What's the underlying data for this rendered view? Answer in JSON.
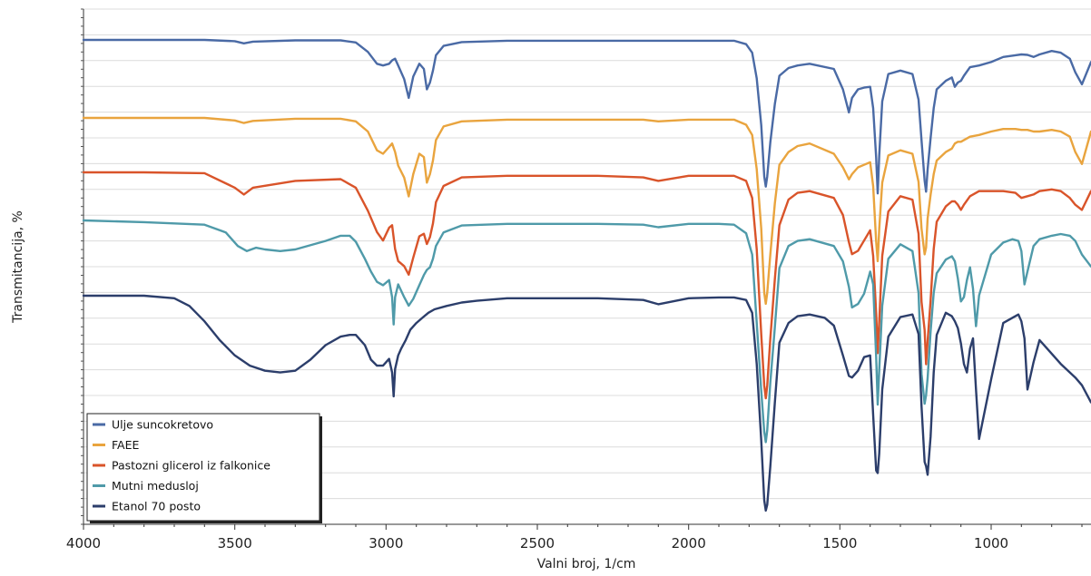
{
  "chart_data": {
    "type": "line",
    "title": "",
    "xlabel": "Valni broj, 1/cm",
    "ylabel": "Transmitancija, %",
    "xlim": [
      4000,
      670
    ],
    "x_reversed": true,
    "x_ticks": [
      4000,
      3500,
      3000,
      2500,
      2000,
      1500,
      1000
    ],
    "grid": "horizontal",
    "legend_position": "bottom-left",
    "series": [
      {
        "name": "Ulje suncokretovo",
        "color": "#4a6aa5",
        "x": [
          4000,
          3800,
          3600,
          3500,
          3470,
          3440,
          3300,
          3150,
          3100,
          3060,
          3030,
          3010,
          2990,
          2980,
          2970,
          2960,
          2940,
          2925,
          2910,
          2890,
          2875,
          2865,
          2855,
          2845,
          2835,
          2810,
          2750,
          2600,
          2300,
          2100,
          2000,
          1900,
          1850,
          1810,
          1790,
          1775,
          1760,
          1750,
          1745,
          1740,
          1730,
          1715,
          1700,
          1670,
          1640,
          1600,
          1520,
          1490,
          1470,
          1460,
          1440,
          1420,
          1400,
          1390,
          1380,
          1375,
          1370,
          1360,
          1340,
          1300,
          1260,
          1240,
          1230,
          1220,
          1215,
          1210,
          1200,
          1190,
          1180,
          1150,
          1130,
          1120,
          1110,
          1100,
          1090,
          1070,
          1040,
          1000,
          960,
          920,
          900,
          880,
          860,
          840,
          800,
          770,
          740,
          722,
          700,
          670
        ],
        "y": [
          0.0,
          0.0,
          0.0,
          -1.5,
          -4.0,
          -2.0,
          -0.5,
          -0.5,
          -3.0,
          -14.0,
          -28.0,
          -30.0,
          -28.0,
          -24.0,
          -22.0,
          -30.0,
          -46.0,
          -68.0,
          -43.0,
          -28.0,
          -34.0,
          -58.0,
          -50.0,
          -36.0,
          -18.0,
          -7.0,
          -2.5,
          -1.0,
          -1.0,
          -1.0,
          -1.0,
          -1.0,
          -1.0,
          -5.0,
          -15.0,
          -45.0,
          -100.0,
          -160.0,
          -172.0,
          -160.0,
          -120.0,
          -75.0,
          -42.0,
          -33.0,
          -30.0,
          -28.0,
          -34.0,
          -58.0,
          -85.0,
          -68.0,
          -58.0,
          -56.0,
          -55.0,
          -80.0,
          -138.0,
          -180.0,
          -135.0,
          -72.0,
          -40.0,
          -36.0,
          -40.0,
          -70.0,
          -118.0,
          -165.0,
          -178.0,
          -152.0,
          -115.0,
          -80.0,
          -58.0,
          -48.0,
          -44.0,
          -55.0,
          -50.0,
          -48.0,
          -42.0,
          -32.0,
          -30.0,
          -26.0,
          -20.0,
          -18.0,
          -17.0,
          -17.5,
          -20.0,
          -17.0,
          -13.0,
          -15.0,
          -22.0,
          -38.0,
          -52.0,
          -26.0
        ]
      },
      {
        "name": "FAEE",
        "color": "#e9a43e",
        "x": [
          4000,
          3800,
          3600,
          3500,
          3470,
          3440,
          3300,
          3150,
          3100,
          3060,
          3030,
          3010,
          2990,
          2980,
          2970,
          2960,
          2940,
          2925,
          2910,
          2890,
          2875,
          2865,
          2855,
          2845,
          2835,
          2810,
          2750,
          2600,
          2300,
          2150,
          2100,
          2000,
          1900,
          1850,
          1810,
          1790,
          1775,
          1760,
          1750,
          1745,
          1740,
          1730,
          1715,
          1700,
          1670,
          1640,
          1600,
          1520,
          1490,
          1470,
          1460,
          1440,
          1420,
          1400,
          1390,
          1380,
          1375,
          1370,
          1360,
          1340,
          1300,
          1260,
          1240,
          1230,
          1220,
          1215,
          1210,
          1200,
          1190,
          1180,
          1150,
          1130,
          1120,
          1110,
          1100,
          1090,
          1070,
          1040,
          1000,
          960,
          920,
          900,
          880,
          860,
          840,
          800,
          770,
          740,
          722,
          700,
          670
        ],
        "y": [
          0.0,
          0.0,
          0.0,
          -3.0,
          -6.0,
          -3.5,
          -1.0,
          -1.0,
          -4.0,
          -16.0,
          -38.0,
          -42.0,
          -34.0,
          -30.0,
          -40.0,
          -56.0,
          -70.0,
          -92.0,
          -66.0,
          -42.0,
          -46.0,
          -76.0,
          -66.0,
          -50.0,
          -26.0,
          -10.0,
          -4.0,
          -2.0,
          -2.0,
          -2.0,
          -4.0,
          -2.0,
          -2.0,
          -2.0,
          -8.0,
          -20.0,
          -60.0,
          -130.0,
          -205.0,
          -218.0,
          -205.0,
          -160.0,
          -100.0,
          -55.0,
          -40.0,
          -33.0,
          -30.0,
          -42.0,
          -58.0,
          -72.0,
          -66.0,
          -58.0,
          -55.0,
          -52.0,
          -80.0,
          -145.0,
          -168.0,
          -130.0,
          -76.0,
          -44.0,
          -38.0,
          -42.0,
          -75.0,
          -130.0,
          -160.0,
          -152.0,
          -118.0,
          -90.0,
          -66.0,
          -50.0,
          -40.0,
          -36.0,
          -30.0,
          -28.0,
          -28.0,
          -26.0,
          -22.0,
          -20.0,
          -16.0,
          -13.0,
          -13.0,
          -14.0,
          -14.0,
          -16.0,
          -16.0,
          -14.0,
          -16.0,
          -22.0,
          -40.0,
          -54.0,
          -16.0
        ]
      },
      {
        "name": "Pastozni glicerol iz falkonice",
        "color": "#d9542a",
        "x": [
          4000,
          3800,
          3600,
          3500,
          3470,
          3440,
          3300,
          3150,
          3100,
          3060,
          3030,
          3010,
          2990,
          2980,
          2970,
          2960,
          2940,
          2925,
          2910,
          2890,
          2875,
          2865,
          2855,
          2845,
          2835,
          2810,
          2750,
          2600,
          2300,
          2150,
          2100,
          2000,
          1900,
          1850,
          1810,
          1790,
          1775,
          1760,
          1750,
          1745,
          1740,
          1730,
          1715,
          1700,
          1670,
          1640,
          1600,
          1520,
          1490,
          1470,
          1460,
          1440,
          1420,
          1400,
          1390,
          1380,
          1375,
          1370,
          1360,
          1340,
          1300,
          1260,
          1240,
          1230,
          1220,
          1215,
          1210,
          1200,
          1190,
          1180,
          1150,
          1130,
          1120,
          1110,
          1100,
          1090,
          1070,
          1040,
          1000,
          960,
          920,
          900,
          880,
          860,
          840,
          800,
          770,
          740,
          722,
          700,
          670
        ],
        "y": [
          0.0,
          0.0,
          -1.0,
          -18.0,
          -26.0,
          -18.0,
          -10.0,
          -8.0,
          -18.0,
          -45.0,
          -70.0,
          -80.0,
          -65.0,
          -62.0,
          -90.0,
          -104.0,
          -110.0,
          -120.0,
          -100.0,
          -75.0,
          -72.0,
          -84.0,
          -76.0,
          -60.0,
          -35.0,
          -16.0,
          -6.0,
          -4.0,
          -4.0,
          -6.0,
          -10.0,
          -4.0,
          -4.0,
          -4.0,
          -10.0,
          -30.0,
          -90.0,
          -190.0,
          -250.0,
          -265.0,
          -250.0,
          -195.0,
          -125.0,
          -62.0,
          -32.0,
          -24.0,
          -22.0,
          -30.0,
          -50.0,
          -82.0,
          -96.0,
          -92.0,
          -80.0,
          -68.0,
          -98.0,
          -165.0,
          -212.0,
          -175.0,
          -98.0,
          -46.0,
          -28.0,
          -32.0,
          -72.0,
          -152.0,
          -185.0,
          -225.0,
          -198.0,
          -150.0,
          -90.0,
          -58.0,
          -40.0,
          -34.0,
          -34.0,
          -38.0,
          -44.0,
          -38.0,
          -28.0,
          -22.0,
          -22.0,
          -22.0,
          -24.0,
          -30.0,
          -28.0,
          -26.0,
          -22.0,
          -20.0,
          -22.0,
          -30.0,
          -38.0,
          -44.0,
          -22.0
        ]
      },
      {
        "name": "Mutni medusloj",
        "color": "#4f9aa9",
        "x": [
          4000,
          3800,
          3600,
          3530,
          3490,
          3460,
          3430,
          3400,
          3350,
          3300,
          3200,
          3150,
          3120,
          3100,
          3070,
          3050,
          3030,
          3010,
          2990,
          2980,
          2975,
          2970,
          2960,
          2940,
          2925,
          2910,
          2890,
          2875,
          2865,
          2855,
          2845,
          2835,
          2810,
          2750,
          2600,
          2300,
          2150,
          2100,
          2000,
          1900,
          1850,
          1810,
          1790,
          1775,
          1760,
          1750,
          1745,
          1740,
          1730,
          1715,
          1700,
          1670,
          1640,
          1600,
          1520,
          1490,
          1470,
          1460,
          1440,
          1420,
          1400,
          1390,
          1380,
          1375,
          1370,
          1360,
          1340,
          1300,
          1260,
          1240,
          1230,
          1220,
          1215,
          1210,
          1200,
          1190,
          1180,
          1150,
          1130,
          1120,
          1110,
          1100,
          1090,
          1080,
          1070,
          1060,
          1050,
          1040,
          1000,
          960,
          930,
          910,
          900,
          890,
          880,
          860,
          840,
          800,
          770,
          740,
          722,
          700,
          670
        ],
        "y": [
          0.0,
          -2.0,
          -5.0,
          -14.0,
          -30.0,
          -36.0,
          -32.0,
          -34.0,
          -36.0,
          -34.0,
          -24.0,
          -18.0,
          -18.0,
          -25.0,
          -45.0,
          -60.0,
          -72.0,
          -76.0,
          -70.0,
          -90.0,
          -122.0,
          -90.0,
          -75.0,
          -90.0,
          -100.0,
          -92.0,
          -76.0,
          -64.0,
          -58.0,
          -55.0,
          -45.0,
          -30.0,
          -14.0,
          -6.0,
          -4.0,
          -4.0,
          -5.0,
          -8.0,
          -4.0,
          -4.0,
          -5.0,
          -15.0,
          -40.0,
          -120.0,
          -200.0,
          -248.0,
          -260.0,
          -246.0,
          -190.0,
          -125.0,
          -56.0,
          -30.0,
          -24.0,
          -22.0,
          -30.0,
          -48.0,
          -78.0,
          -102.0,
          -98.0,
          -86.0,
          -60.0,
          -75.0,
          -160.0,
          -216.0,
          -175.0,
          -100.0,
          -45.0,
          -28.0,
          -36.0,
          -85.0,
          -180.0,
          -215.0,
          -205.0,
          -185.0,
          -130.0,
          -85.0,
          -62.0,
          -46.0,
          -42.0,
          -48.0,
          -68.0,
          -95.0,
          -90.0,
          -70.0,
          -55.0,
          -80.0,
          -124.0,
          -88.0,
          -40.0,
          -26.0,
          -22.0,
          -24.0,
          -36.0,
          -75.0,
          -60.0,
          -30.0,
          -22.0,
          -18.0,
          -16.0,
          -18.0,
          -24.0,
          -40.0,
          -54.0
        ]
      },
      {
        "name": "Etanol 70 posto",
        "color": "#2c3e6b",
        "x": [
          4000,
          3800,
          3700,
          3650,
          3600,
          3550,
          3500,
          3450,
          3400,
          3350,
          3300,
          3250,
          3200,
          3150,
          3120,
          3100,
          3070,
          3050,
          3030,
          3010,
          2990,
          2980,
          2975,
          2970,
          2960,
          2950,
          2935,
          2920,
          2900,
          2880,
          2860,
          2840,
          2800,
          2750,
          2700,
          2600,
          2300,
          2150,
          2100,
          2000,
          1900,
          1850,
          1810,
          1790,
          1775,
          1760,
          1750,
          1745,
          1740,
          1730,
          1715,
          1700,
          1670,
          1640,
          1600,
          1550,
          1520,
          1490,
          1470,
          1460,
          1440,
          1420,
          1400,
          1390,
          1380,
          1375,
          1370,
          1360,
          1340,
          1300,
          1260,
          1240,
          1230,
          1220,
          1215,
          1210,
          1200,
          1190,
          1180,
          1150,
          1130,
          1120,
          1110,
          1100,
          1090,
          1080,
          1070,
          1060,
          1050,
          1040,
          1000,
          960,
          930,
          910,
          900,
          890,
          880,
          860,
          840,
          800,
          770,
          740,
          722,
          700,
          670
        ],
        "y": [
          0.0,
          0.0,
          -3.0,
          -12.0,
          -30.0,
          -52.0,
          -70.0,
          -82.0,
          -88.0,
          -90.0,
          -88.0,
          -75.0,
          -58.0,
          -48.0,
          -46.0,
          -46.0,
          -58.0,
          -75.0,
          -82.0,
          -82.0,
          -74.0,
          -90.0,
          -118.0,
          -86.0,
          -70.0,
          -62.0,
          -52.0,
          -40.0,
          -32.0,
          -26.0,
          -20.0,
          -16.0,
          -12.0,
          -8.0,
          -6.0,
          -3.0,
          -3.0,
          -5.0,
          -10.0,
          -3.0,
          -2.0,
          -2.0,
          -5.0,
          -20.0,
          -80.0,
          -170.0,
          -240.0,
          -252.0,
          -245.0,
          -200.0,
          -125.0,
          -55.0,
          -32.0,
          -24.0,
          -22.0,
          -26.0,
          -35.0,
          -70.0,
          -94.0,
          -96.0,
          -88.0,
          -72.0,
          -70.0,
          -140.0,
          -205.0,
          -208.0,
          -185.0,
          -110.0,
          -48.0,
          -25.0,
          -22.0,
          -45.0,
          -130.0,
          -195.0,
          -200.0,
          -210.0,
          -165.0,
          -90.0,
          -46.0,
          -20.0,
          -24.0,
          -30.0,
          -38.0,
          -56.0,
          -80.0,
          -90.0,
          -62.0,
          -50.0,
          -110.0,
          -168.0,
          -98.0,
          -32.0,
          -26.0,
          -22.0,
          -30.0,
          -50.0,
          -110.0,
          -78.0,
          -52.0,
          -68.0,
          -80.0,
          -90.0,
          -96.0,
          -105.0,
          -125.0
        ]
      }
    ]
  }
}
